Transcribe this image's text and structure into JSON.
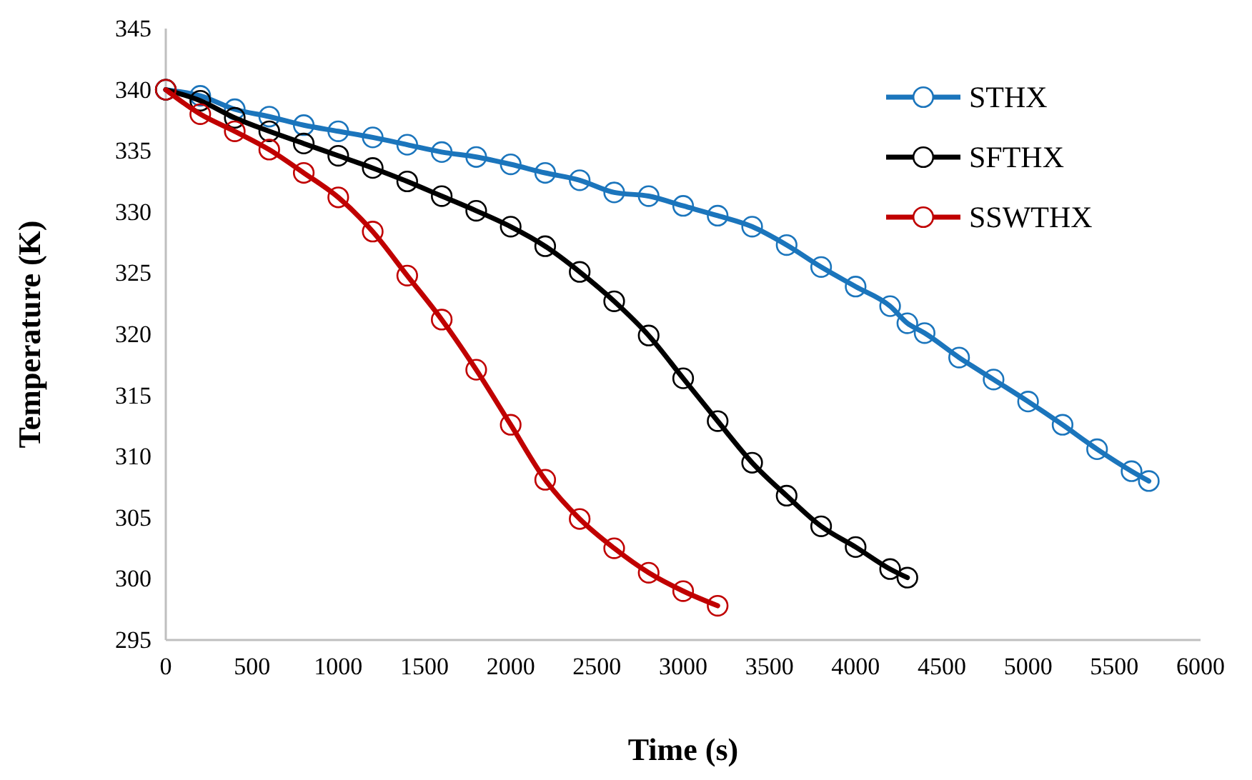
{
  "chart_data": {
    "type": "line",
    "xlabel": "Time (s)",
    "ylabel": "Temperature (K)",
    "xlim": [
      0,
      6000
    ],
    "xticks": [
      0,
      500,
      1000,
      1500,
      2000,
      2500,
      3000,
      3500,
      4000,
      4500,
      5000,
      5500,
      6000
    ],
    "ylim": [
      295,
      345
    ],
    "yticks": [
      295,
      300,
      305,
      310,
      315,
      320,
      325,
      330,
      335,
      340,
      345
    ],
    "grid": false,
    "legend": "top right",
    "marker": "circle",
    "line_style": "solid",
    "series": [
      {
        "name": "STHX",
        "color": "#1b75bc",
        "x": [
          0,
          200,
          400,
          600,
          800,
          1000,
          1200,
          1400,
          1600,
          1800,
          2000,
          2200,
          2400,
          2600,
          2800,
          3000,
          3200,
          3400,
          3600,
          3800,
          4000,
          4200,
          4300,
          4400,
          4600,
          4800,
          5000,
          5200,
          5400,
          5600,
          5700
        ],
        "values": [
          340,
          339.5,
          338.4,
          337.8,
          337.1,
          336.6,
          336.1,
          335.5,
          334.9,
          334.5,
          333.9,
          333.2,
          332.6,
          331.6,
          331.3,
          330.5,
          329.7,
          328.8,
          327.3,
          325.5,
          323.9,
          322.3,
          320.9,
          320.1,
          318.1,
          316.3,
          314.5,
          312.6,
          310.6,
          308.8,
          308.0
        ]
      },
      {
        "name": "SFTHX",
        "color": "#000000",
        "x": [
          0,
          200,
          400,
          600,
          800,
          1000,
          1200,
          1400,
          1600,
          1800,
          2000,
          2200,
          2400,
          2600,
          2800,
          3000,
          3200,
          3400,
          3600,
          3800,
          4000,
          4200,
          4300
        ],
        "values": [
          340,
          339.1,
          337.7,
          336.6,
          335.6,
          334.6,
          333.6,
          332.5,
          331.3,
          330.1,
          328.8,
          327.2,
          325.1,
          322.7,
          319.9,
          316.4,
          312.9,
          309.5,
          306.8,
          304.3,
          302.6,
          300.8,
          300.1
        ]
      },
      {
        "name": "SSWTHX",
        "color": "#c00000",
        "x": [
          0,
          200,
          400,
          600,
          800,
          1000,
          1200,
          1400,
          1600,
          1800,
          2000,
          2200,
          2400,
          2600,
          2800,
          3000,
          3200
        ],
        "values": [
          340,
          338.0,
          336.6,
          335.1,
          333.2,
          331.2,
          328.4,
          324.8,
          321.2,
          317.1,
          312.6,
          308.1,
          304.9,
          302.5,
          300.5,
          299.0,
          297.8
        ]
      }
    ]
  }
}
